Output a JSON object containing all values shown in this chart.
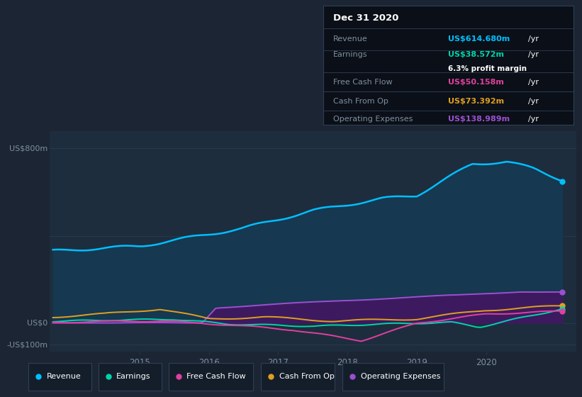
{
  "background_color": "#1b2533",
  "plot_bg_color": "#1e2d3d",
  "grid_color": "#2e4055",
  "text_color": "#8090a0",
  "ylabel_top": "US$800m",
  "ylabel_zero": "US$0",
  "ylabel_bottom": "-US$100m",
  "ylim": [
    -130,
    880
  ],
  "xlim": [
    2013.7,
    2021.3
  ],
  "revenue_color": "#00bfff",
  "revenue_fill": "#163850",
  "earnings_color": "#00d4aa",
  "free_cashflow_color": "#e040a0",
  "cash_from_op_color": "#e0a020",
  "op_expenses_color": "#9b50d0",
  "op_expenses_fill": "#3d1a60",
  "info_box_bg": "#0b0f17",
  "info_box_border": "#2e4055",
  "info_title": "Dec 31 2020",
  "info_rows": [
    {
      "label": "Revenue",
      "value": "US$614.680m",
      "value_color": "#00bfff",
      "suffix": " /yr",
      "margin": null
    },
    {
      "label": "Earnings",
      "value": "US$38.572m",
      "value_color": "#00d4aa",
      "suffix": " /yr",
      "margin": "6.3% profit margin"
    },
    {
      "label": "Free Cash Flow",
      "value": "US$50.158m",
      "value_color": "#e040a0",
      "suffix": " /yr",
      "margin": null
    },
    {
      "label": "Cash From Op",
      "value": "US$73.392m",
      "value_color": "#e0a020",
      "suffix": " /yr",
      "margin": null
    },
    {
      "label": "Operating Expenses",
      "value": "US$138.989m",
      "value_color": "#9b50d0",
      "suffix": " /yr",
      "margin": null
    }
  ],
  "legend": [
    {
      "label": "Revenue",
      "color": "#00bfff"
    },
    {
      "label": "Earnings",
      "color": "#00d4aa"
    },
    {
      "label": "Free Cash Flow",
      "color": "#e040a0"
    },
    {
      "label": "Cash From Op",
      "color": "#e0a020"
    },
    {
      "label": "Operating Expenses",
      "color": "#9b50d0"
    }
  ]
}
